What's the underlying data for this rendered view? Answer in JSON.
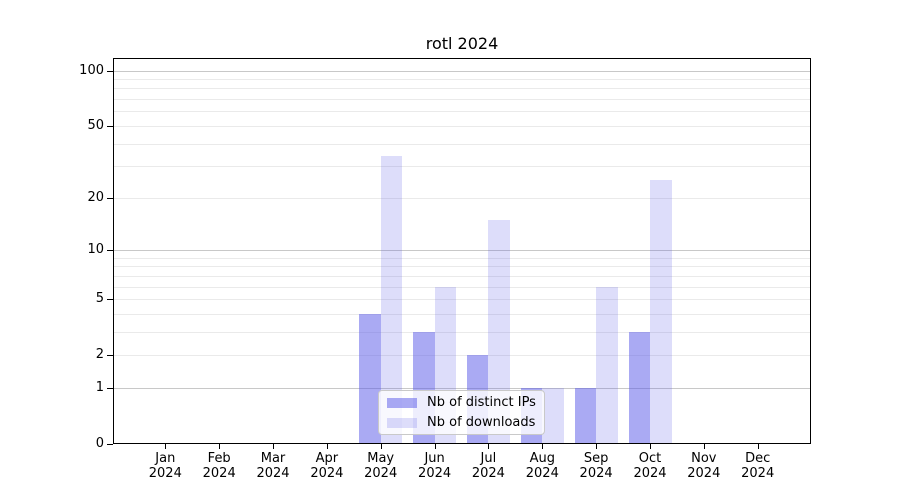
{
  "chart_data": {
    "type": "bar",
    "title": "rotl 2024",
    "x_axis": {
      "months": [
        "Jan",
        "Feb",
        "Mar",
        "Apr",
        "May",
        "Jun",
        "Jul",
        "Aug",
        "Sep",
        "Oct",
        "Nov",
        "Dec"
      ],
      "year": "2024"
    },
    "series": [
      {
        "name": "Nb of distinct IPs",
        "color": "rgba(85,85,231,0.5)",
        "values": [
          0,
          0,
          0,
          0,
          4,
          3,
          2,
          1,
          1,
          3,
          0,
          0
        ]
      },
      {
        "name": "Nb of downloads",
        "color": "rgba(85,85,231,0.2)",
        "values": [
          0,
          0,
          0,
          0,
          34,
          6,
          15,
          1,
          6,
          25,
          0,
          0
        ]
      }
    ],
    "y_axis": {
      "scale": "log1p",
      "ylim": [
        0,
        117
      ],
      "tick_values": [
        0,
        1,
        2,
        5,
        10,
        20,
        50,
        100
      ],
      "major_gridlines": [
        1,
        10,
        100
      ],
      "minor_gridlines": [
        2,
        3,
        4,
        5,
        6,
        7,
        8,
        9,
        20,
        30,
        40,
        50,
        60,
        70,
        80,
        90
      ],
      "major_grid_color": "#c8c8c8",
      "minor_grid_color": "#eaeaea"
    },
    "legend_position": "lower center"
  }
}
